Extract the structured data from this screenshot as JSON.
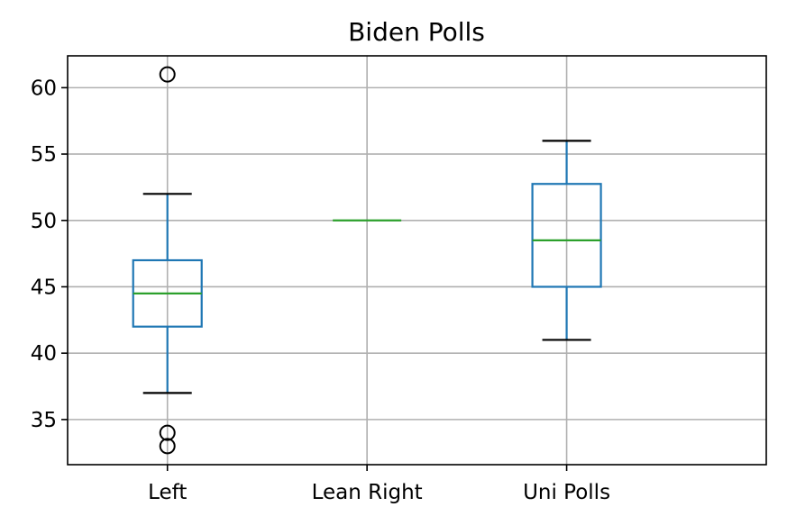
{
  "chart_data": {
    "type": "box",
    "title": "Biden Polls",
    "xlabel": "",
    "ylabel": "",
    "categories": [
      "Left",
      "Lean Right",
      "Uni Polls"
    ],
    "ylim": [
      31.6,
      62.4
    ],
    "yticks": [
      35,
      40,
      45,
      50,
      55,
      60
    ],
    "ytick_labels": [
      "35",
      "40",
      "45",
      "50",
      "55",
      "60"
    ],
    "grid": true,
    "boxes": [
      {
        "category": "Left",
        "whisker_low": 37,
        "q1": 42,
        "median": 44.5,
        "q3": 47,
        "whisker_high": 52,
        "outliers": [
          61,
          34,
          33
        ]
      },
      {
        "category": "Lean Right",
        "whisker_low": 50,
        "q1": 50,
        "median": 50,
        "q3": 50,
        "whisker_high": 50,
        "outliers": []
      },
      {
        "category": "Uni Polls",
        "whisker_low": 41,
        "q1": 45,
        "median": 48.5,
        "q3": 52.75,
        "whisker_high": 56,
        "outliers": []
      }
    ],
    "colors": {
      "box": "#1f77b4",
      "median": "#2ca02c",
      "whisker_cap": "#000000",
      "flier": "#000000",
      "grid": "#b0b0b0"
    }
  }
}
